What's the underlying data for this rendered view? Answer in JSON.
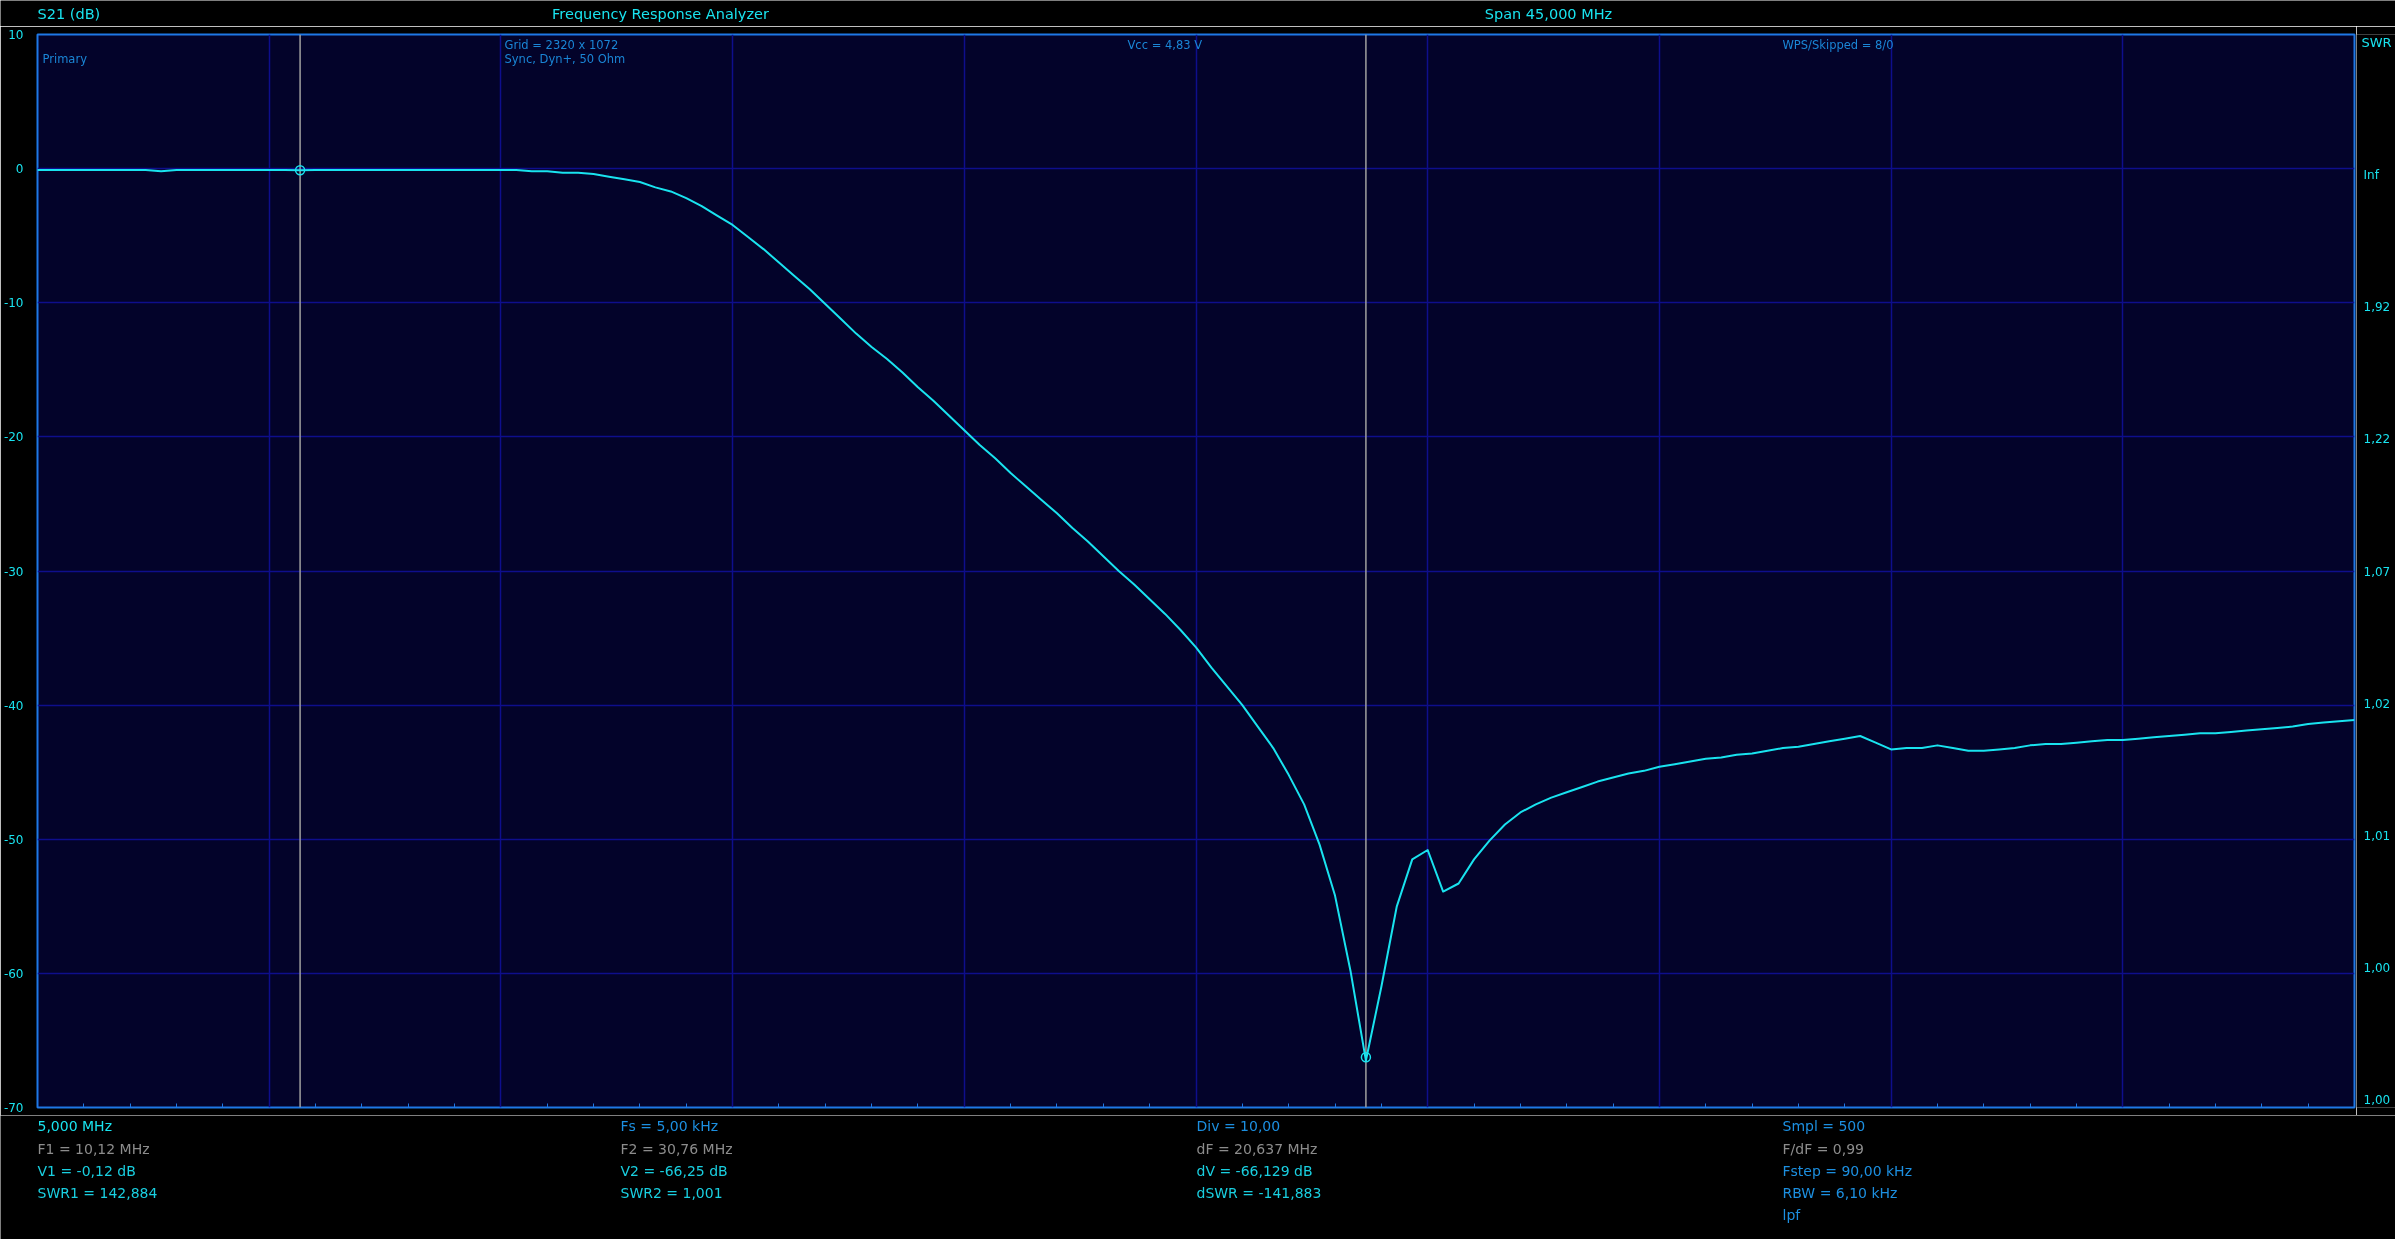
{
  "chart_data": {
    "type": "line",
    "title": "Frequency Response Analyzer",
    "subtitle": "Span 45,000 MHz",
    "ylabel": "S21 (dB)",
    "y2label": "SWR",
    "categories": [
      null,
      null,
      null,
      null,
      null,
      null,
      null,
      null,
      null,
      null,
      null,
      null,
      null,
      null,
      null,
      null,
      null,
      null,
      null,
      null,
      null,
      null,
      null,
      null,
      null,
      null,
      null,
      null,
      null,
      null,
      null,
      null,
      null,
      null,
      null,
      null,
      null,
      null,
      null,
      null,
      null,
      null,
      null,
      null,
      null,
      null,
      null,
      null,
      null,
      null,
      null,
      null,
      null,
      null,
      null,
      null,
      null,
      null,
      null,
      null,
      null,
      null,
      null,
      null,
      null,
      null,
      null,
      null,
      null,
      null,
      null,
      null,
      null,
      null,
      null,
      null,
      null,
      null,
      null,
      null,
      null,
      null,
      null,
      null,
      null,
      null,
      null,
      null,
      null,
      null,
      null,
      null,
      null,
      null,
      null,
      null,
      null,
      null,
      null,
      null,
      null,
      null,
      null,
      null,
      null,
      null,
      null,
      null,
      null,
      null,
      null,
      null,
      null,
      null,
      null,
      null,
      null,
      null,
      null,
      null,
      null,
      null,
      null,
      null,
      null,
      null,
      null,
      null,
      null,
      null,
      null,
      null,
      null,
      null,
      null,
      null,
      null,
      null,
      null,
      null,
      null,
      null,
      null,
      null,
      null,
      null,
      null,
      null,
      null,
      null,
      null
    ],
    "series": [
      {
        "color": "#19e3ef",
        "values": [
          -0.1,
          -0.1,
          -0.1,
          -0.1,
          -0.1,
          -0.1,
          -0.1,
          -0.1,
          -0.2,
          -0.1,
          -0.1,
          -0.1,
          -0.1,
          -0.1,
          -0.1,
          -0.1,
          -0.1,
          -0.12,
          -0.1,
          -0.1,
          -0.1,
          -0.1,
          -0.1,
          -0.1,
          -0.1,
          -0.1,
          -0.1,
          -0.1,
          -0.1,
          -0.1,
          -0.1,
          -0.1,
          -0.2,
          -0.2,
          -0.3,
          -0.3,
          -0.4,
          -0.6,
          -0.8,
          -1.0,
          -1.4,
          -1.7,
          -2.2,
          -2.8,
          -3.5,
          -4.2,
          -5.1,
          -6.0,
          -7.0,
          -8.0,
          -9.0,
          -10.1,
          -11.2,
          -12.3,
          -13.3,
          -14.2,
          -15.2,
          -16.3,
          -17.3,
          -18.4,
          -19.5,
          -20.6,
          -21.6,
          -22.7,
          -23.7,
          -24.7,
          -25.7,
          -26.8,
          -27.8,
          -28.9,
          -30.0,
          -31.0,
          -32.1,
          -33.2,
          -34.4,
          -35.7,
          -37.2,
          -38.6,
          -40.0,
          -41.6,
          -43.2,
          -45.2,
          -47.4,
          -50.4,
          -54.2,
          -59.8,
          -66.5,
          -61.0,
          -55.0,
          -51.5,
          -50.8,
          -53.9,
          -53.3,
          -51.5,
          -50.1,
          -48.9,
          -48.0,
          -47.4,
          -46.9,
          -46.5,
          -46.1,
          -45.7,
          -45.4,
          -45.1,
          -44.9,
          -44.6,
          -44.4,
          -44.2,
          -44.0,
          -43.9,
          -43.7,
          -43.6,
          -43.4,
          -43.2,
          -43.1,
          -42.9,
          -42.7,
          -42.5,
          -42.3,
          -42.8,
          -43.3,
          -43.2,
          -43.2,
          -43.0,
          -43.2,
          -43.4,
          -43.4,
          -43.3,
          -43.2,
          -43.0,
          -42.9,
          -42.9,
          -42.8,
          -42.7,
          -42.6,
          -42.6,
          -42.5,
          -42.4,
          -42.3,
          -42.2,
          -42.1,
          -42.1,
          -42.0,
          -41.9,
          -41.8,
          -41.7,
          -41.6,
          -41.4,
          -41.3,
          -41.2,
          -41.1
        ]
      },
      {
        "type": "scatter",
        "color": "#19e3ef",
        "marker": "circle",
        "values": [
          null,
          null,
          null,
          null,
          null,
          null,
          null,
          null,
          null,
          null,
          null,
          null,
          null,
          null,
          null,
          null,
          null,
          -0.12,
          null,
          null,
          null,
          null,
          null,
          null,
          null,
          null,
          null,
          null,
          null,
          null,
          null,
          null,
          null,
          null,
          null,
          null,
          null,
          null,
          null,
          null,
          null,
          null,
          null,
          null,
          null,
          null,
          null,
          null,
          null,
          null,
          null,
          null,
          null,
          null,
          null,
          null,
          null,
          null,
          null,
          null,
          null,
          null,
          null,
          null,
          null,
          null,
          null,
          null,
          null,
          null,
          null,
          null,
          null,
          null,
          null,
          null,
          null,
          null,
          null,
          null,
          null,
          null,
          null,
          null,
          null,
          null,
          -66.25,
          null,
          null,
          null,
          null,
          null,
          null,
          null,
          null,
          null,
          null,
          null,
          null,
          null,
          null,
          null,
          null,
          null,
          null,
          null,
          null,
          null,
          null,
          null,
          null,
          null,
          null,
          null,
          null,
          null,
          null,
          null,
          null,
          null,
          null,
          null,
          null,
          null,
          null,
          null,
          null,
          null,
          null,
          null,
          null,
          null,
          null,
          null,
          null,
          null,
          null,
          null,
          null,
          null,
          null,
          null,
          null,
          null,
          null,
          null,
          null,
          null,
          null,
          null,
          null
        ]
      }
    ],
    "ylim": [
      -70,
      10
    ],
    "yticks": [
      -70,
      -60,
      -50,
      -40,
      -30,
      -20,
      -10,
      0,
      10
    ],
    "grid": true,
    "marker": "none",
    "line_style": "solid",
    "annotations": [
      "Grid = 2320 x 1072",
      "Vcc = 4,83 V",
      "WPS/Skipped  = 8/0",
      "Primary",
      "Sync,  Dyn+, 50 Ohm",
      "Inf",
      "1,92",
      "1,22",
      "1,07",
      "1,02",
      "1,01",
      "1,00",
      "1,00",
      "5,000 MHz",
      "Fs = 5,00 kHz",
      "Div = 10,00",
      "Smpl = 500",
      "F1 = 10,12 MHz",
      "F2 = 30,76 MHz",
      "dF = 20,637 MHz",
      "F/dF = 0,99",
      "V1 = -0,12 dB",
      "V2 = -66,25 dB",
      "dV = -66,129 dB",
      "Fstep = 90,00 kHz",
      "SWR1 = 142,884",
      "SWR2 = 1,001",
      "dSWR = -141,883",
      "RBW = 6,10 kHz",
      "lpf"
    ]
  }
}
